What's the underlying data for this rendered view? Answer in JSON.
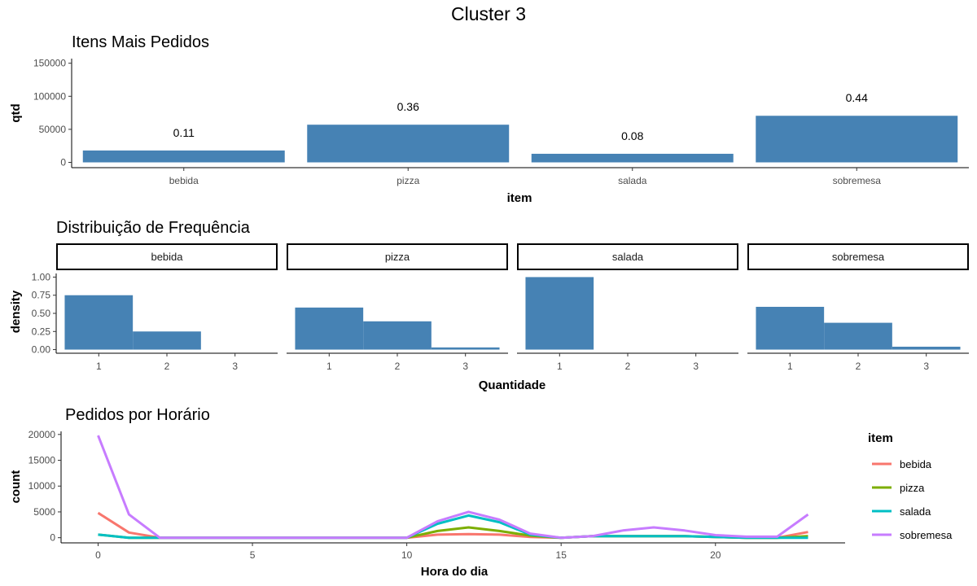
{
  "chart_data": {
    "title": "Cluster 3",
    "panels": [
      {
        "type": "bar",
        "title": "Itens Mais Pedidos",
        "xlabel": "item",
        "ylabel": "qtd",
        "categories": [
          "bebida",
          "pizza",
          "salada",
          "sobremesa"
        ],
        "values": [
          18000,
          57000,
          13000,
          70500
        ],
        "labels": [
          "0.11",
          "0.36",
          "0.08",
          "0.44"
        ],
        "yticks": [
          0,
          50000,
          100000,
          150000
        ],
        "ylim": [
          -8000,
          157000
        ],
        "color": "#4682B4"
      },
      {
        "type": "bar",
        "title": "Distribuição de Frequência",
        "xlabel": "Quantidade",
        "ylabel": "density",
        "facets": [
          {
            "name": "bebida",
            "values": [
              0.75,
              0.25,
              0.0
            ]
          },
          {
            "name": "pizza",
            "values": [
              0.58,
              0.39,
              0.03
            ]
          },
          {
            "name": "salada",
            "values": [
              1.0,
              0.0,
              0.0
            ]
          },
          {
            "name": "sobremesa",
            "values": [
              0.59,
              0.37,
              0.04
            ]
          }
        ],
        "xticks": [
          "1",
          "2",
          "3"
        ],
        "yticks": [
          "0.00",
          "0.25",
          "0.50",
          "0.75",
          "1.00"
        ],
        "ylim": [
          -0.05,
          1.05
        ],
        "color": "#4682B4"
      },
      {
        "type": "line",
        "title": "Pedidos por Horário",
        "xlabel": "Hora do dia",
        "ylabel": "count",
        "x": [
          0,
          1,
          2,
          3,
          4,
          5,
          6,
          7,
          8,
          9,
          10,
          11,
          12,
          13,
          14,
          15,
          16,
          17,
          18,
          19,
          20,
          21,
          22,
          23
        ],
        "xticks": [
          0,
          5,
          10,
          15,
          20
        ],
        "yticks": [
          0,
          5000,
          10000,
          15000,
          20000
        ],
        "xlim": [
          -1.2,
          24.2
        ],
        "ylim": [
          -1000,
          20600
        ],
        "legend_title": "item",
        "legend_position": "right",
        "series": [
          {
            "name": "bebida",
            "color": "#F8766D",
            "values": [
              4800,
              1000,
              0,
              0,
              0,
              0,
              0,
              0,
              0,
              0,
              0,
              600,
              700,
              600,
              150,
              0,
              300,
              300,
              300,
              300,
              150,
              0,
              0,
              1100
            ]
          },
          {
            "name": "pizza",
            "color": "#7CAE00",
            "values": [
              600,
              0,
              0,
              0,
              0,
              0,
              0,
              0,
              0,
              0,
              0,
              1300,
              2000,
              1300,
              400,
              0,
              300,
              300,
              300,
              300,
              150,
              0,
              0,
              300
            ]
          },
          {
            "name": "salada",
            "color": "#00BFC4",
            "values": [
              600,
              0,
              0,
              0,
              0,
              0,
              0,
              0,
              0,
              0,
              0,
              2700,
              4300,
              3000,
              600,
              0,
              300,
              300,
              300,
              300,
              150,
              0,
              0,
              0
            ]
          },
          {
            "name": "sobremesa",
            "color": "#C77CFF",
            "values": [
              19800,
              4500,
              0,
              0,
              0,
              0,
              0,
              0,
              0,
              0,
              0,
              3200,
              5000,
              3500,
              800,
              0,
              300,
              1400,
              2000,
              1400,
              500,
              200,
              200,
              4500
            ]
          }
        ]
      }
    ]
  }
}
